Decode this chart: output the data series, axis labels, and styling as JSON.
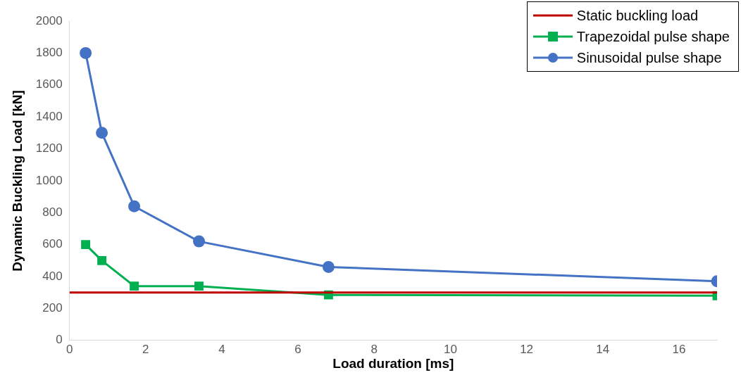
{
  "chart_data": {
    "type": "line",
    "xlabel": "Load duration [ms]",
    "ylabel": "Dynamic Buckling Load [kN]",
    "xlim": [
      0,
      17
    ],
    "xticks": [
      0,
      2,
      4,
      6,
      8,
      10,
      12,
      14,
      16
    ],
    "ylim": [
      0,
      2000
    ],
    "yticks": [
      0,
      200,
      400,
      600,
      800,
      1000,
      1200,
      1400,
      1600,
      1800,
      2000
    ],
    "grid": false,
    "legend": "top right",
    "line_style": "solid",
    "series": [
      {
        "name": "Static buckling load",
        "color": "#c00000",
        "marker": "none",
        "x": [
          0,
          17
        ],
        "values": [
          300,
          300
        ]
      },
      {
        "name": "Trapezoidal pulse shape",
        "color": "#00b050",
        "marker": "square",
        "x": [
          0.425,
          0.85,
          1.7,
          3.4,
          6.8,
          17
        ],
        "values": [
          600,
          500,
          340,
          340,
          285,
          280
        ]
      },
      {
        "name": "Sinusoidal pulse shape",
        "color": "#4472c4",
        "marker": "circle",
        "x": [
          0.425,
          0.85,
          1.7,
          3.4,
          6.8,
          17
        ],
        "values": [
          1800,
          1300,
          840,
          620,
          460,
          370
        ]
      }
    ]
  }
}
